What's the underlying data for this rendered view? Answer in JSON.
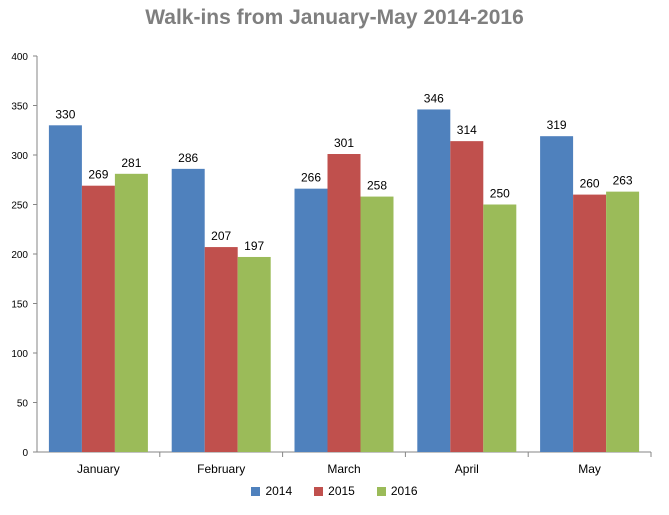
{
  "chart_data": {
    "type": "bar",
    "title": "Walk-ins from January-May 2014-2016",
    "xlabel": "",
    "ylabel": "",
    "categories": [
      "January",
      "February",
      "March",
      "April",
      "May"
    ],
    "ylim": [
      0,
      400
    ],
    "yticks": [
      0,
      50,
      100,
      150,
      200,
      250,
      300,
      350,
      400
    ],
    "grid": false,
    "legend_position": "bottom",
    "data_labels": true,
    "series": [
      {
        "name": "2014",
        "color": "#4f81bd",
        "values": [
          330,
          286,
          266,
          346,
          319
        ]
      },
      {
        "name": "2015",
        "color": "#c0504d",
        "values": [
          269,
          207,
          301,
          314,
          260
        ]
      },
      {
        "name": "2016",
        "color": "#9bbb59",
        "values": [
          281,
          197,
          258,
          250,
          263
        ]
      }
    ]
  }
}
